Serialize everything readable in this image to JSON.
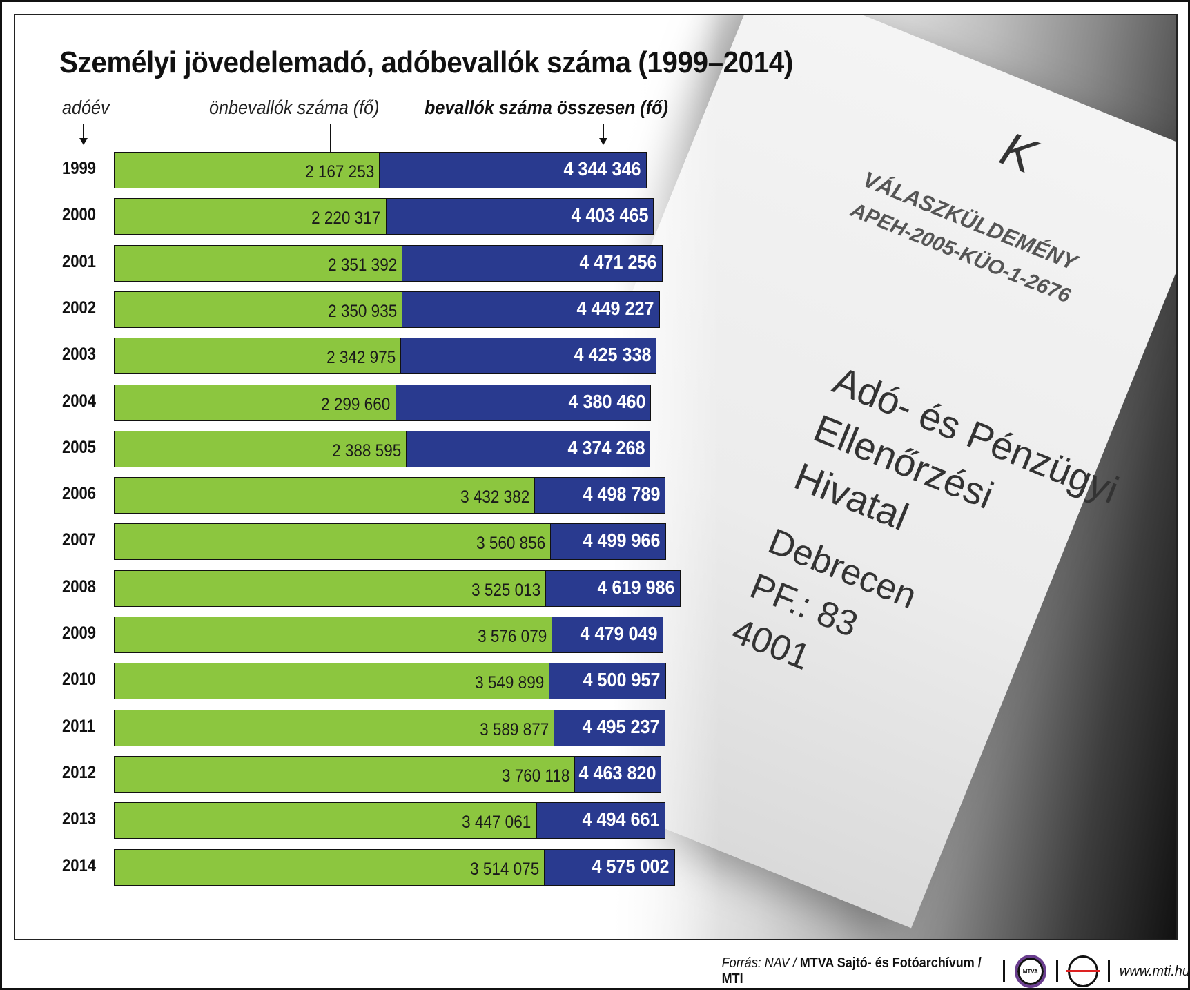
{
  "chart_data": {
    "type": "bar",
    "orientation": "horizontal",
    "title": "Személyi jövedelemadó, adóbevallók száma (1999–2014)",
    "category_header": "adóév",
    "categories": [
      "1999",
      "2000",
      "2001",
      "2002",
      "2003",
      "2004",
      "2005",
      "2006",
      "2007",
      "2008",
      "2009",
      "2010",
      "2011",
      "2012",
      "2013",
      "2014"
    ],
    "series": [
      {
        "name": "önbevallók száma (fő)",
        "color": "#8cc63f",
        "values": [
          2167253,
          2220317,
          2351392,
          2350935,
          2342975,
          2299660,
          2388595,
          3432382,
          3560856,
          3525013,
          3576079,
          3549899,
          3589877,
          3760118,
          3447061,
          3514075
        ],
        "labels": [
          "2 167 253",
          "2 220 317",
          "2 351 392",
          "2 350 935",
          "2 342 975",
          "2 299 660",
          "2 388 595",
          "3 432 382",
          "3 560 856",
          "3 525 013",
          "3 576 079",
          "3 549 899",
          "3 589 877",
          "3 760 118",
          "3 447 061",
          "3 514 075"
        ]
      },
      {
        "name": "bevallók száma összesen (fő)",
        "color": "#293a8f",
        "values": [
          4344346,
          4403465,
          4471256,
          4449227,
          4425338,
          4380460,
          4374268,
          4498789,
          4499966,
          4619986,
          4479049,
          4500957,
          4495237,
          4463820,
          4494661,
          4575002
        ],
        "labels": [
          "4 344 346",
          "4 403 465",
          "4 471 256",
          "4 449 227",
          "4 425 338",
          "4 380 460",
          "4 374 268",
          "4 498 789",
          "4 499 966",
          "4 619 986",
          "4 479 049",
          "4 500 957",
          "4 495 237",
          "4 463 820",
          "4 494 661",
          "4 575 002"
        ]
      }
    ],
    "grid": false,
    "legend": "top"
  },
  "photo_text": {
    "stamp": "K",
    "line1": "VÁLASZKÜLDEMÉNY",
    "line2": "APEH-2005-KÜO-1-2676",
    "address": [
      "Adó- és Pénzügyi",
      "Ellenőrzési",
      "Hivatal",
      "Debrecen",
      "PF.: 83",
      "4001"
    ]
  },
  "footer": {
    "source_prefix": "Forrás: NAV / ",
    "source_bold": "MTVA Sajtó- és Fotóarchívum / MTI",
    "logo1": "MTVA",
    "website": "www.mti.hu"
  }
}
